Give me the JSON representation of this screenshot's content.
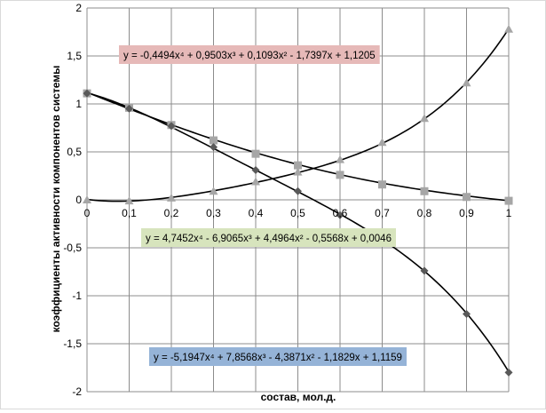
{
  "chart_data": {
    "type": "scatter",
    "title": "",
    "xlabel": "состав, мол.д.",
    "ylabel": "коэффициенты активности компонентов системы",
    "xlim": [
      0,
      1
    ],
    "ylim": [
      -2,
      2
    ],
    "x_ticks": [
      "0",
      "0,1",
      "0,2",
      "0,3",
      "0,4",
      "0,5",
      "0,6",
      "0,7",
      "0,8",
      "0,9",
      "1"
    ],
    "y_ticks": [
      "2",
      "1,5",
      "1",
      "0,5",
      "0",
      "-0,5",
      "-1",
      "-1,5",
      "-2"
    ],
    "grid": true,
    "legend": "none",
    "series": [
      {
        "marker": "square",
        "marker_color": "#a6a6a6",
        "x": [
          0,
          0.1,
          0.2,
          0.3,
          0.4,
          0.5,
          0.6,
          0.7,
          0.8,
          0.9,
          1
        ],
        "y": [
          1.11,
          0.96,
          0.78,
          0.62,
          0.48,
          0.36,
          0.26,
          0.16,
          0.09,
          0.03,
          -0.01
        ],
        "trendline": {
          "coefficients": [
            -0.4494,
            0.9503,
            0.1093,
            -1.7397,
            1.1205
          ],
          "label": "y = -0,4494x⁴ + 0,9503x³ + 0,1093x² - 1,7397x + 1,1205",
          "label_bg": "#e6b9b8"
        }
      },
      {
        "marker": "triangle",
        "marker_color": "#a6a6a6",
        "x": [
          0,
          0.1,
          0.2,
          0.3,
          0.4,
          0.5,
          0.6,
          0.7,
          0.8,
          0.9,
          1
        ],
        "y": [
          0.0,
          -0.01,
          0.02,
          0.09,
          0.19,
          0.29,
          0.42,
          0.6,
          0.85,
          1.22,
          1.78
        ],
        "trendline": {
          "coefficients": [
            4.7452,
            -6.9065,
            4.4964,
            -0.5568,
            0.0046
          ],
          "label": "y = 4,7452x⁴ - 6,9065x³ + 4,4964x² - 0,5568x + 0,0046",
          "label_bg": "#d7e4bd"
        }
      },
      {
        "marker": "diamond",
        "marker_color": "#595959",
        "x": [
          0,
          0.1,
          0.2,
          0.3,
          0.4,
          0.5,
          0.6,
          0.7,
          0.8,
          0.9,
          1
        ],
        "y": [
          1.11,
          0.95,
          0.77,
          0.55,
          0.31,
          0.09,
          -0.16,
          -0.42,
          -0.74,
          -1.19,
          -1.8
        ],
        "trendline": {
          "coefficients": [
            -5.1947,
            7.8568,
            -4.3871,
            -1.1829,
            1.1159
          ],
          "label": "y = -5,1947x⁴ + 7,8568x³ - 4,3871x² - 1,1829x + 1,1159",
          "label_bg": "#95b3d7"
        }
      }
    ]
  }
}
